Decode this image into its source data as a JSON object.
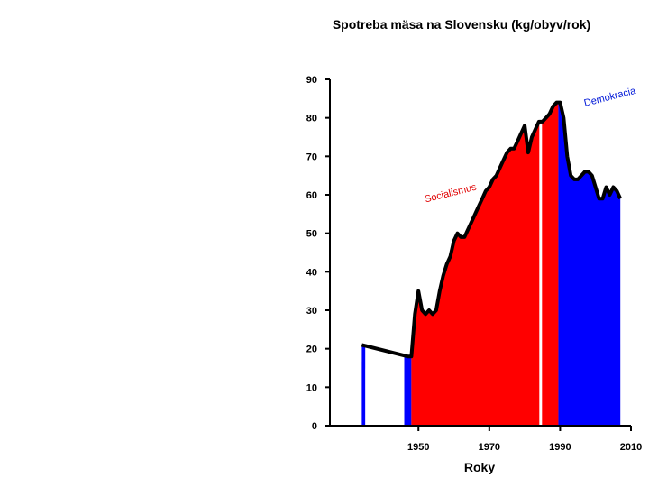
{
  "chart_data": {
    "type": "area",
    "title": "Spotreba mäsa na Slovensku (kg/obyv/rok)",
    "xlabel": "Roky",
    "ylabel": "",
    "xlim": [
      1925,
      2010
    ],
    "ylim": [
      0,
      90
    ],
    "x_ticks": [
      1950,
      1970,
      1990,
      2010
    ],
    "y_ticks": [
      0,
      10,
      20,
      30,
      40,
      50,
      60,
      70,
      80,
      90
    ],
    "series": [
      {
        "name": "Spotreba mäsa",
        "x": [
          1934,
          1947,
          1948,
          1949,
          1950,
          1951,
          1952,
          1953,
          1954,
          1955,
          1956,
          1957,
          1958,
          1959,
          1960,
          1961,
          1962,
          1963,
          1964,
          1965,
          1966,
          1967,
          1968,
          1969,
          1970,
          1971,
          1972,
          1973,
          1974,
          1975,
          1976,
          1977,
          1978,
          1979,
          1980,
          1981,
          1982,
          1983,
          1984,
          1985,
          1986,
          1987,
          1988,
          1989,
          1990,
          1991,
          1992,
          1993,
          1994,
          1995,
          1996,
          1997,
          1998,
          1999,
          2000,
          2001,
          2002,
          2003,
          2004,
          2005,
          2006,
          2007
        ],
        "values": [
          21,
          18,
          18,
          29,
          35,
          30,
          29,
          30,
          29,
          30,
          35,
          39,
          42,
          44,
          48,
          50,
          49,
          49,
          51,
          53,
          55,
          57,
          59,
          61,
          62,
          64,
          65,
          67,
          69,
          71,
          72,
          72,
          74,
          76,
          78,
          71,
          75,
          77,
          79,
          79,
          80,
          81,
          83,
          84,
          84,
          80,
          70,
          65,
          64,
          64,
          65,
          66,
          66,
          65,
          62,
          59,
          59,
          62,
          60,
          62,
          61,
          59
        ]
      }
    ],
    "regions": [
      {
        "name": "pre-war blue",
        "from": 1934,
        "to": 1935,
        "color": "#0000ff"
      },
      {
        "name": "interwar gap",
        "from": 1935,
        "to": 1946,
        "color": "#ffffff"
      },
      {
        "name": "post-war blue",
        "from": 1946,
        "to": 1948,
        "color": "#0000ff"
      },
      {
        "name": "socialism",
        "from": 1948,
        "to": 1989.5,
        "color": "#ff0000"
      },
      {
        "name": "post-1989",
        "from": 1989.5,
        "to": 2007,
        "color": "#0000ff"
      }
    ],
    "white_line_x": 1984.5,
    "annotations": [
      {
        "text": "Socialismus",
        "color": "#e00000",
        "x": 1952,
        "y": 58
      },
      {
        "text": "Demokracia",
        "color": "#0018d8",
        "x": 1997,
        "y": 83
      }
    ]
  }
}
